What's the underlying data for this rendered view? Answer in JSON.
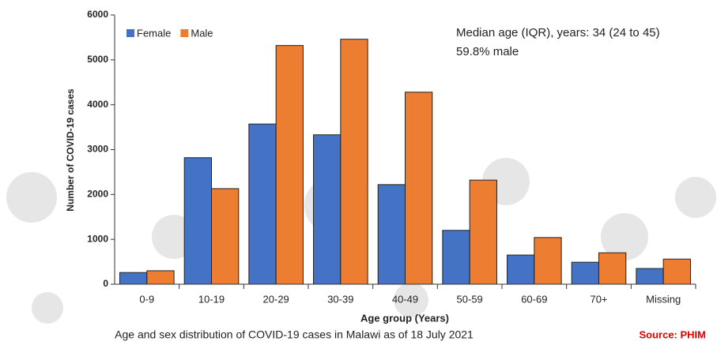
{
  "chart_data": {
    "type": "bar",
    "categories": [
      "0-9",
      "10-19",
      "20-29",
      "30-39",
      "40-49",
      "50-59",
      "60-69",
      "70+",
      "Missing"
    ],
    "series": [
      {
        "name": "Female",
        "color": "#4472c4",
        "values": [
          260,
          2820,
          3570,
          3330,
          2220,
          1200,
          650,
          490,
          350
        ]
      },
      {
        "name": "Male",
        "color": "#ed7d31",
        "values": [
          300,
          2130,
          5320,
          5460,
          4280,
          2320,
          1040,
          700,
          560
        ]
      }
    ],
    "ylim": [
      0,
      6000
    ],
    "yticks": [
      0,
      1000,
      2000,
      3000,
      4000,
      5000,
      6000
    ],
    "y_label": "Number of COVID-19 cases",
    "x_label": "Age group (Years)",
    "legend": "top-left",
    "annotations": [
      "Median age (IQR), years: 34 (24 to 45)",
      "59.8% male"
    ],
    "caption": "Age and sex distribution of COVID-19 cases in Malawi as of 18 July 2021",
    "source": "Source: PHIM"
  }
}
